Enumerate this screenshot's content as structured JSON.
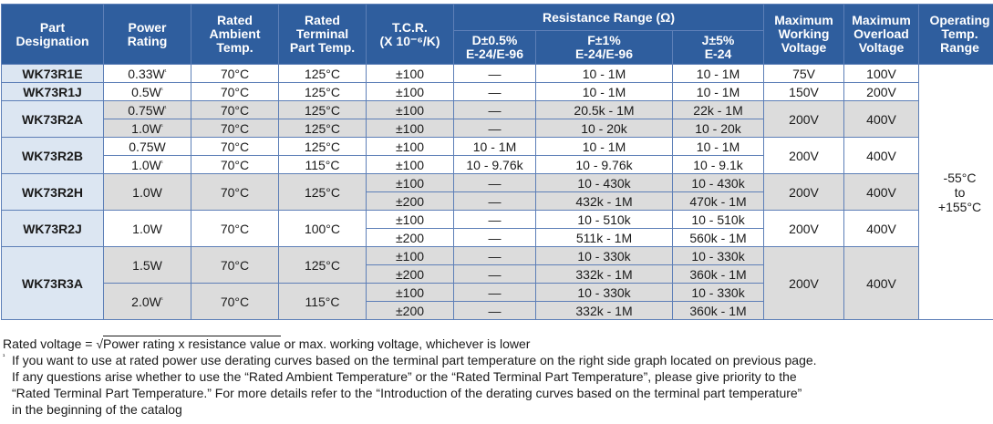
{
  "headers": {
    "part": [
      "Part",
      "Designation"
    ],
    "power": [
      "Power",
      "Rating"
    ],
    "rated_amb": [
      "Rated",
      "Ambient",
      "Temp."
    ],
    "rated_term": [
      "Rated",
      "Terminal",
      "Part Temp."
    ],
    "tcr": [
      "T.C.R.",
      "(X 10⁻⁶/K)"
    ],
    "resistance_range": "Resistance Range (Ω)",
    "res_d": [
      "D±0.5%",
      "E-24/E-96"
    ],
    "res_f": [
      "F±1%",
      "E-24/E-96"
    ],
    "res_j": [
      "J±5%",
      "E-24"
    ],
    "max_work": [
      "Maximum",
      "Working",
      "Voltage"
    ],
    "max_over": [
      "Maximum",
      "Overload",
      "Voltage"
    ],
    "op_temp": [
      "Operating",
      "Temp.",
      "Range"
    ]
  },
  "parts": {
    "r1e": "WK73R1E",
    "r1j": "WK73R1J",
    "r2a": "WK73R2A",
    "r2b": "WK73R2B",
    "r2h": "WK73R2H",
    "r2j": "WK73R2J",
    "r3a": "WK73R3A"
  },
  "power": {
    "r1e": "0.33W",
    "r1j": "0.5W",
    "r2a_1": "0.75W",
    "r2a_2": "1.0W",
    "r2b_1": "0.75W",
    "r2b_2": "1.0W",
    "r2h": "1.0W",
    "r2j": "1.0W",
    "r3a_1": "1.5W",
    "r3a_2": "2.0W"
  },
  "footnote_mark": "¹",
  "amb": "70°C",
  "term": {
    "t125": "125°C",
    "t115": "115°C",
    "t100": "100°C"
  },
  "tcr": {
    "t100": "±100",
    "t200": "±200"
  },
  "dash": "—",
  "res": {
    "r1e_f": "10 - 1M",
    "r1e_j": "10 - 1M",
    "r1j_f": "10 - 1M",
    "r1j_j": "10 - 1M",
    "r2a1_f": "20.5k - 1M",
    "r2a1_j": "22k - 1M",
    "r2a2_f": "10 - 20k",
    "r2a2_j": "10 - 20k",
    "r2b1_d": "10 - 1M",
    "r2b1_f": "10 - 1M",
    "r2b1_j": "10 - 1M",
    "r2b2_d": "10 - 9.76k",
    "r2b2_f": "10 - 9.76k",
    "r2b2_j": "10 - 9.1k",
    "r2h1_f": "10 - 430k",
    "r2h1_j": "10 - 430k",
    "r2h2_f": "432k - 1M",
    "r2h2_j": "470k - 1M",
    "r2j1_f": "10 - 510k",
    "r2j1_j": "10 - 510k",
    "r2j2_f": "511k - 1M",
    "r2j2_j": "560k - 1M",
    "r3a1_f": "10 - 330k",
    "r3a1_j": "10 - 330k",
    "r3a2_f": "332k - 1M",
    "r3a2_j": "360k - 1M",
    "r3a3_f": "10 - 330k",
    "r3a3_j": "10 - 330k",
    "r3a4_f": "332k - 1M",
    "r3a4_j": "360k - 1M"
  },
  "volt": {
    "v75": "75V",
    "v100": "100V",
    "v150": "150V",
    "v200": "200V",
    "v400": "400V"
  },
  "op_temp": [
    "-55°C",
    "to",
    "+155°C"
  ],
  "notes": {
    "rated_voltage_prefix": "Rated voltage = √",
    "rated_voltage_radicand": "Power rating x resistance value",
    "rated_voltage_suffix": " or max. working voltage, whichever is lower",
    "footnote_mark": "¹",
    "footnote_lines": [
      "If you want to use at rated power use derating curves based on the terminal part temperature on the right side graph located on previous page.",
      "If any questions arise whether to use the “Rated Ambient Temperature” or the “Rated Terminal Part Temperature”, please give priority to the",
      "“Rated Terminal Part Temperature.” For more details refer to the “Introduction of the derating curves based on the terminal part temperature”",
      "in the beginning of the catalog"
    ]
  }
}
